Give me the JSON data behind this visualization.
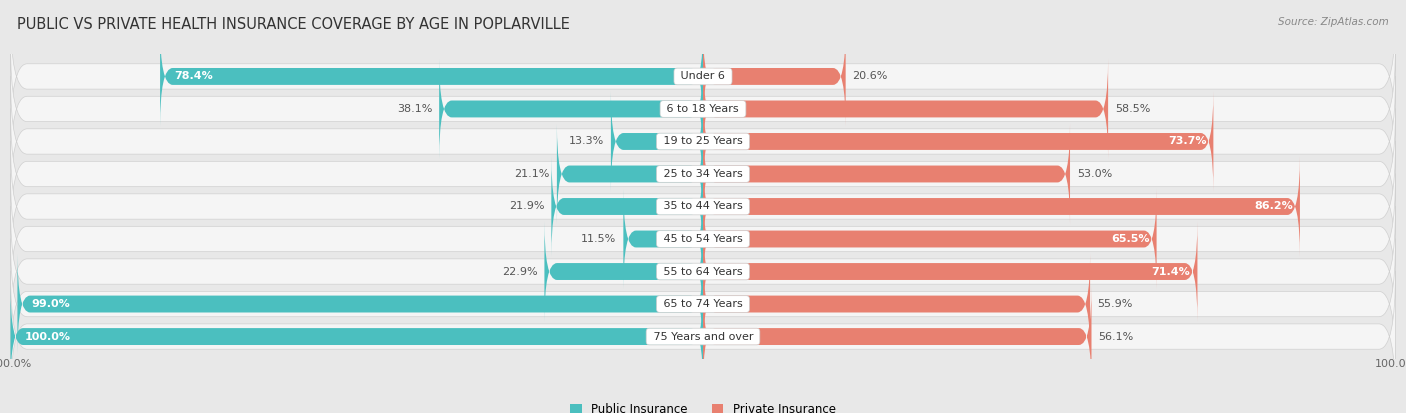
{
  "title": "PUBLIC VS PRIVATE HEALTH INSURANCE COVERAGE BY AGE IN POPLARVILLE",
  "source": "Source: ZipAtlas.com",
  "categories": [
    "Under 6",
    "6 to 18 Years",
    "19 to 25 Years",
    "25 to 34 Years",
    "35 to 44 Years",
    "45 to 54 Years",
    "55 to 64 Years",
    "65 to 74 Years",
    "75 Years and over"
  ],
  "public_values": [
    78.4,
    38.1,
    13.3,
    21.1,
    21.9,
    11.5,
    22.9,
    99.0,
    100.0
  ],
  "private_values": [
    20.6,
    58.5,
    73.7,
    53.0,
    86.2,
    65.5,
    71.4,
    55.9,
    56.1
  ],
  "public_color": "#4bbfbf",
  "private_color": "#e88070",
  "background_color": "#e8e8e8",
  "row_bg_color": "#f5f5f5",
  "row_border_color": "#d0d0d0",
  "label_fontsize": 8.0,
  "title_fontsize": 10.5,
  "source_fontsize": 7.5,
  "legend_fontsize": 8.5,
  "axis_label_fontsize": 8.0
}
